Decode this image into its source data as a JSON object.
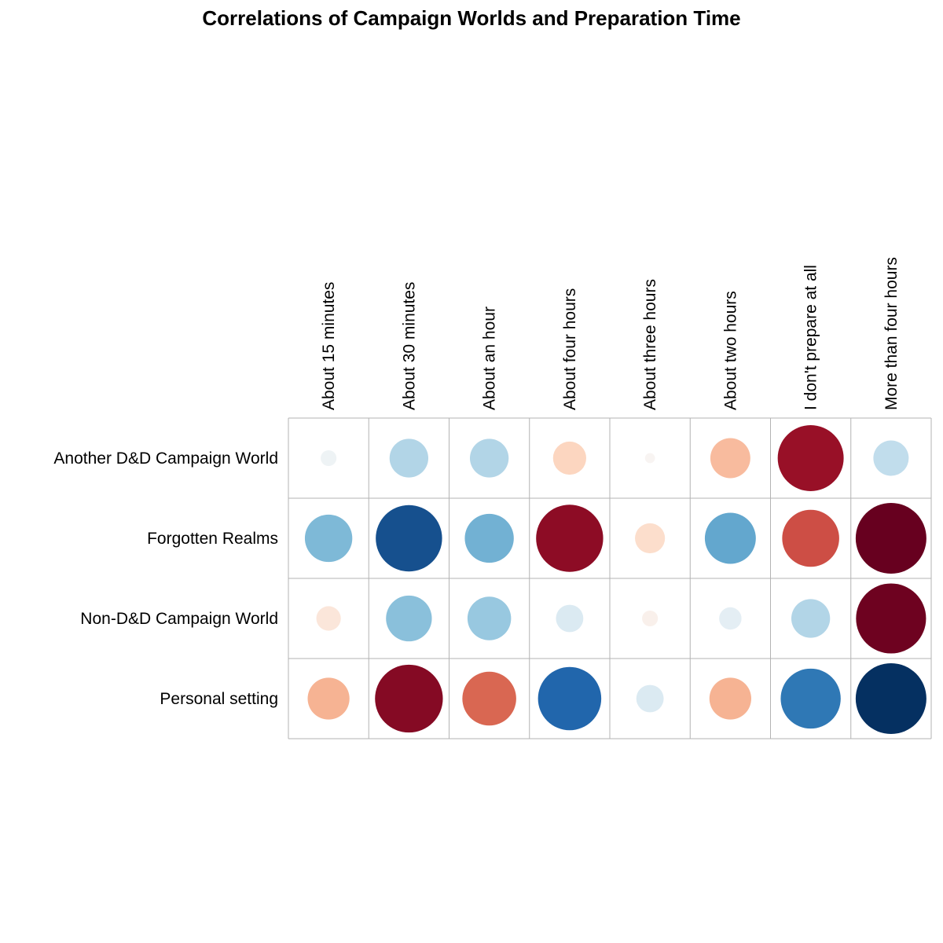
{
  "chart_data": {
    "type": "heatmap",
    "title": "Correlations of Campaign Worlds and Preparation Time",
    "columns": [
      "About 15 minutes",
      "About 30 minutes",
      "About an hour",
      "About four hours",
      "About three hours",
      "About two hours",
      "I don't prepare at all",
      "More than four hours"
    ],
    "rows": [
      "Another D&D Campaign World",
      "Forgotten Realms",
      "Non-D&D Campaign World",
      "Personal setting"
    ],
    "values": [
      [
        -0.05,
        -0.3,
        -0.3,
        0.22,
        0.02,
        0.32,
        0.87,
        -0.25
      ],
      [
        -0.45,
        -0.88,
        -0.48,
        0.9,
        0.18,
        -0.52,
        0.65,
        1.0
      ],
      [
        0.12,
        -0.42,
        -0.38,
        -0.15,
        0.05,
        -0.1,
        -0.3,
        0.98
      ],
      [
        0.35,
        0.92,
        0.58,
        -0.8,
        -0.15,
        0.35,
        -0.72,
        -1.0
      ]
    ],
    "value_range": [
      -1,
      1
    ],
    "color_scale": [
      "#053061",
      "#2166ac",
      "#4393c3",
      "#92c5de",
      "#d1e5f0",
      "#f7f7f7",
      "#fddbc7",
      "#f4a582",
      "#d6604d",
      "#b2182b",
      "#67001f"
    ],
    "grid": true
  }
}
